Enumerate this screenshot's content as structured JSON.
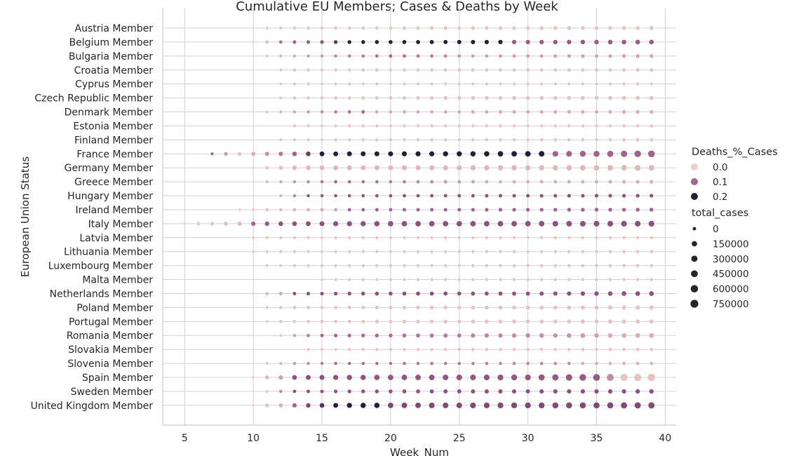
{
  "chart_data": {
    "type": "scatter",
    "title": "Cumulative EU Members; Cases & Deaths by Week",
    "xlabel": "Week_Num",
    "ylabel": "European Union Status",
    "xlim": [
      3.4,
      40.8
    ],
    "xticks": [
      5,
      10,
      15,
      20,
      25,
      30,
      35,
      40
    ],
    "grid": true,
    "legend_position": "right",
    "color_colors": {
      "low": "#ead0c7",
      "mid": "#a4628c",
      "high": "#2a1b3a"
    },
    "categories": [
      "Austria Member",
      "Belgium Member",
      "Bulgaria Member",
      "Croatia Member",
      "Cyprus Member",
      "Czech Republic Member",
      "Denmark Member",
      "Estonia Member",
      "Finland Member",
      "France Member",
      "Germany Member",
      "Greece Member",
      "Hungary Member",
      "Ireland Member",
      "Italy Member",
      "Latvia Member",
      "Lithuania Member",
      "Luxembourg Member",
      "Malta Member",
      "Netherlands Member",
      "Poland Member",
      "Portugal Member",
      "Romania Member",
      "Slovakia Member",
      "Slovenia Member",
      "Spain Member",
      "Sweden Member",
      "United Kingdom Member"
    ],
    "week_range": {
      "Austria Member": [
        11,
        39
      ],
      "Belgium Member": [
        10,
        39
      ],
      "Bulgaria Member": [
        11,
        39
      ],
      "Croatia Member": [
        12,
        39
      ],
      "Cyprus Member": [
        12,
        39
      ],
      "Czech Republic Member": [
        12,
        39
      ],
      "Denmark Member": [
        11,
        39
      ],
      "Estonia Member": [
        13,
        39
      ],
      "Finland Member": [
        12,
        39
      ],
      "France Member": [
        7,
        39
      ],
      "Germany Member": [
        10,
        39
      ],
      "Greece Member": [
        11,
        39
      ],
      "Hungary Member": [
        12,
        39
      ],
      "Ireland Member": [
        9,
        39
      ],
      "Italy Member": [
        5,
        39
      ],
      "Latvia Member": [
        10,
        39
      ],
      "Lithuania Member": [
        10,
        39
      ],
      "Luxembourg Member": [
        11,
        39
      ],
      "Malta Member": [
        15,
        39
      ],
      "Netherlands Member": [
        10,
        39
      ],
      "Poland Member": [
        11,
        39
      ],
      "Portugal Member": [
        11,
        39
      ],
      "Romania Member": [
        12,
        39
      ],
      "Slovakia Member": [
        14,
        39
      ],
      "Slovenia Member": [
        11,
        39
      ],
      "Spain Member": [
        10,
        39
      ],
      "Sweden Member": [
        11,
        39
      ],
      "United Kingdom Member": [
        10,
        39
      ]
    },
    "deaths_pct": {
      "Austria Member": [
        [
          11,
          0.01
        ]
      ],
      "Belgium Member": [
        [
          10,
          0.0
        ],
        [
          11,
          0.02
        ],
        [
          12,
          0.09
        ],
        [
          15,
          0.12
        ],
        [
          17,
          0.2
        ],
        [
          28,
          0.2
        ],
        [
          29,
          0.11
        ]
      ],
      "Bulgaria Member": [
        [
          11,
          0.01
        ],
        [
          20,
          0.1
        ],
        [
          26,
          0.04
        ]
      ],
      "Croatia Member": [
        [
          12,
          0.01
        ]
      ],
      "Cyprus Member": [
        [
          12,
          0.01
        ]
      ],
      "Czech Republic Member": [
        [
          12,
          0.01
        ]
      ],
      "Denmark Member": [
        [
          11,
          0.01
        ],
        [
          18,
          0.1
        ],
        [
          19,
          0.03
        ]
      ],
      "Estonia Member": [
        [
          13,
          0.01
        ]
      ],
      "Finland Member": [
        [
          12,
          0.01
        ]
      ],
      "France Member": [
        [
          7,
          0.1
        ],
        [
          9,
          0.01
        ],
        [
          13,
          0.1
        ],
        [
          15,
          0.2
        ],
        [
          31,
          0.2
        ],
        [
          32,
          0.1
        ]
      ],
      "Germany Member": [
        [
          10,
          0.0
        ],
        [
          13,
          0.02
        ]
      ],
      "Greece Member": [
        [
          11,
          0.02
        ],
        [
          16,
          0.1
        ],
        [
          28,
          0.03
        ]
      ],
      "Hungary Member": [
        [
          12,
          0.03
        ],
        [
          14,
          0.12
        ]
      ],
      "Ireland Member": [
        [
          9,
          0.0
        ],
        [
          16,
          0.04
        ],
        [
          17,
          0.1
        ]
      ],
      "Italy Member": [
        [
          5,
          0.0
        ],
        [
          9,
          0.02
        ],
        [
          10,
          0.1
        ],
        [
          12,
          0.12
        ]
      ],
      "Latvia Member": [
        [
          10,
          0.01
        ]
      ],
      "Lithuania Member": [
        [
          10,
          0.01
        ]
      ],
      "Luxembourg Member": [
        [
          11,
          0.01
        ]
      ],
      "Malta Member": [
        [
          15,
          0.01
        ]
      ],
      "Netherlands Member": [
        [
          10,
          0.0
        ],
        [
          12,
          0.04
        ],
        [
          13,
          0.12
        ]
      ],
      "Poland Member": [
        [
          11,
          0.01
        ]
      ],
      "Portugal Member": [
        [
          11,
          0.01
        ]
      ],
      "Romania Member": [
        [
          12,
          0.01
        ],
        [
          15,
          0.1
        ],
        [
          34,
          0.05
        ],
        [
          36,
          0.03
        ]
      ],
      "Slovakia Member": [
        [
          14,
          0.01
        ]
      ],
      "Slovenia Member": [
        [
          11,
          0.01
        ],
        [
          16,
          0.1
        ],
        [
          33,
          0.06
        ],
        [
          34,
          0.03
        ]
      ],
      "Spain Member": [
        [
          10,
          0.0
        ],
        [
          12,
          0.04
        ],
        [
          13,
          0.12
        ],
        [
          35,
          0.11
        ],
        [
          36,
          0.06
        ],
        [
          37,
          0.01
        ]
      ],
      "Sweden Member": [
        [
          11,
          0.01
        ],
        [
          13,
          0.12
        ]
      ],
      "United Kingdom Member": [
        [
          10,
          0.0
        ],
        [
          12,
          0.03
        ],
        [
          13,
          0.1
        ],
        [
          16,
          0.2
        ],
        [
          19,
          0.2
        ],
        [
          20,
          0.13
        ]
      ]
    },
    "total_cases": {
      "Austria Member": [
        [
          11,
          0
        ],
        [
          39,
          50000
        ]
      ],
      "Belgium Member": [
        [
          10,
          0
        ],
        [
          39,
          120000
        ]
      ],
      "Bulgaria Member": [
        [
          11,
          0
        ],
        [
          39,
          25000
        ]
      ],
      "Croatia Member": [
        [
          12,
          0
        ],
        [
          39,
          20000
        ]
      ],
      "Cyprus Member": [
        [
          12,
          0
        ],
        [
          39,
          2000
        ]
      ],
      "Czech Republic Member": [
        [
          12,
          0
        ],
        [
          39,
          70000
        ]
      ],
      "Denmark Member": [
        [
          11,
          0
        ],
        [
          39,
          30000
        ]
      ],
      "Estonia Member": [
        [
          13,
          0
        ],
        [
          39,
          3000
        ]
      ],
      "Finland Member": [
        [
          12,
          0
        ],
        [
          39,
          10000
        ]
      ],
      "France Member": [
        [
          7,
          0
        ],
        [
          15,
          130000
        ],
        [
          25,
          190000
        ],
        [
          33,
          300000
        ],
        [
          36,
          400000
        ],
        [
          39,
          550000
        ]
      ],
      "Germany Member": [
        [
          10,
          0
        ],
        [
          15,
          140000
        ],
        [
          20,
          175000
        ],
        [
          30,
          210000
        ],
        [
          39,
          290000
        ]
      ],
      "Greece Member": [
        [
          11,
          0
        ],
        [
          39,
          18000
        ]
      ],
      "Hungary Member": [
        [
          12,
          0
        ],
        [
          39,
          25000
        ]
      ],
      "Ireland Member": [
        [
          9,
          0
        ],
        [
          39,
          35000
        ]
      ],
      "Italy Member": [
        [
          5,
          0
        ],
        [
          14,
          140000
        ],
        [
          20,
          230000
        ],
        [
          30,
          250000
        ],
        [
          39,
          310000
        ]
      ],
      "Latvia Member": [
        [
          10,
          0
        ],
        [
          39,
          2000
        ]
      ],
      "Lithuania Member": [
        [
          10,
          0
        ],
        [
          39,
          5000
        ]
      ],
      "Luxembourg Member": [
        [
          11,
          0
        ],
        [
          39,
          8000
        ]
      ],
      "Malta Member": [
        [
          15,
          0
        ],
        [
          39,
          3000
        ]
      ],
      "Netherlands Member": [
        [
          10,
          0
        ],
        [
          20,
          45000
        ],
        [
          30,
          55000
        ],
        [
          39,
          120000
        ]
      ],
      "Poland Member": [
        [
          11,
          0
        ],
        [
          39,
          90000
        ]
      ],
      "Portugal Member": [
        [
          11,
          0
        ],
        [
          39,
          75000
        ]
      ],
      "Romania Member": [
        [
          12,
          0
        ],
        [
          39,
          130000
        ]
      ],
      "Slovakia Member": [
        [
          14,
          0
        ],
        [
          39,
          10000
        ]
      ],
      "Slovenia Member": [
        [
          11,
          0
        ],
        [
          39,
          6000
        ]
      ],
      "Spain Member": [
        [
          10,
          0
        ],
        [
          13,
          130000
        ],
        [
          20,
          240000
        ],
        [
          30,
          330000
        ],
        [
          35,
          550000
        ],
        [
          39,
          750000
        ]
      ],
      "Sweden Member": [
        [
          11,
          0
        ],
        [
          25,
          60000
        ],
        [
          39,
          90000
        ]
      ],
      "United Kingdom Member": [
        [
          10,
          0
        ],
        [
          15,
          110000
        ],
        [
          20,
          250000
        ],
        [
          30,
          330000
        ],
        [
          39,
          420000
        ]
      ]
    },
    "legend": {
      "hue_title": "Deaths_%_Cases",
      "hue_entries": [
        {
          "label": "0.0",
          "value": 0.0
        },
        {
          "label": "0.1",
          "value": 0.1
        },
        {
          "label": "0.2",
          "value": 0.2
        }
      ],
      "size_title": "total_cases",
      "size_entries": [
        {
          "label": "0",
          "value": 0
        },
        {
          "label": "150000",
          "value": 150000
        },
        {
          "label": "300000",
          "value": 300000
        },
        {
          "label": "450000",
          "value": 450000
        },
        {
          "label": "600000",
          "value": 600000
        },
        {
          "label": "750000",
          "value": 750000
        }
      ]
    }
  }
}
